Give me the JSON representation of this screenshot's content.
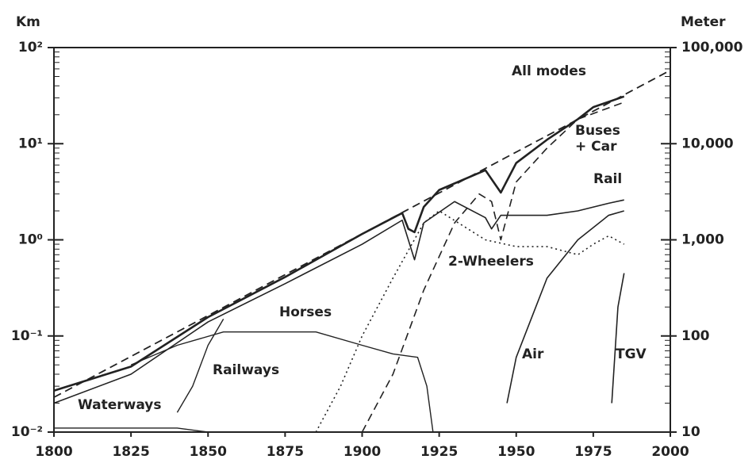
{
  "chart_data": {
    "type": "line",
    "ylabel": "Km",
    "y2label": "Meter",
    "log_y": true,
    "xlim": [
      1800,
      2000
    ],
    "xticks": [
      1800,
      1825,
      1850,
      1875,
      1900,
      1925,
      1950,
      1975,
      2000
    ],
    "ylim": [
      0.01,
      100
    ],
    "yticks": [
      {
        "value": 0.01,
        "label": "10⁻²"
      },
      {
        "value": 0.1,
        "label": "10⁻¹"
      },
      {
        "value": 1,
        "label": "10⁰"
      },
      {
        "value": 10,
        "label": "10¹"
      },
      {
        "value": 100,
        "label": "10²"
      }
    ],
    "y2lim": [
      10,
      100000
    ],
    "y2ticks": [
      10,
      100,
      {
        "value": 1000,
        "label": "1,000"
      },
      {
        "value": 10000,
        "label": "10,000"
      },
      {
        "value": 100000,
        "label": "100,000"
      }
    ],
    "series": [
      {
        "name": "All modes",
        "color": "#222",
        "style": "solid",
        "width": 2.6,
        "x": [
          1800,
          1825,
          1850,
          1875,
          1900,
          1913,
          1915,
          1917,
          1920,
          1925,
          1940,
          1945,
          1950,
          1960,
          1970,
          1975,
          1985
        ],
        "values": [
          0.027,
          0.048,
          0.157,
          0.41,
          1.15,
          1.9,
          1.3,
          1.2,
          2.2,
          3.3,
          5.3,
          3.1,
          6.3,
          11,
          18,
          24,
          31
        ]
      },
      {
        "color": "#222",
        "style": "dashed",
        "width": 1.8,
        "x": [
          1800,
          2000
        ],
        "values": [
          0.023,
          58
        ]
      },
      {
        "name": "Buses + Car",
        "color": "#222",
        "style": "dashed",
        "width": 1.6,
        "x": [
          1900,
          1910,
          1920,
          1930,
          1938,
          1942,
          1945,
          1950,
          1960,
          1970,
          1985
        ],
        "values": [
          0.01,
          0.04,
          0.3,
          1.5,
          3.0,
          2.5,
          1.0,
          4,
          9,
          18,
          27
        ]
      },
      {
        "name": "Rail",
        "color": "#222",
        "style": "solid",
        "width": 1.6,
        "x": [
          1800,
          1825,
          1850,
          1875,
          1900,
          1913,
          1917,
          1920,
          1930,
          1940,
          1942,
          1945,
          1950,
          1960,
          1970,
          1980,
          1985
        ],
        "values": [
          0.02,
          0.04,
          0.14,
          0.35,
          0.9,
          1.6,
          0.62,
          1.5,
          2.5,
          1.7,
          1.3,
          1.8,
          1.8,
          1.8,
          2.0,
          2.4,
          2.6
        ]
      },
      {
        "name": "2-Wheelers",
        "color": "#222",
        "style": "dotted",
        "width": 1.6,
        "x": [
          1885,
          1893,
          1900,
          1910,
          1920,
          1925,
          1940,
          1950,
          1960,
          1970,
          1975,
          1980,
          1985
        ],
        "values": [
          0.01,
          0.03,
          0.1,
          0.4,
          1.5,
          2.0,
          1.0,
          0.85,
          0.85,
          0.7,
          0.9,
          1.1,
          0.9
        ]
      },
      {
        "name": "Horses",
        "color": "#222",
        "style": "solid",
        "width": 1.4,
        "x": [
          1825,
          1840,
          1855,
          1875,
          1885,
          1900,
          1910,
          1918,
          1921,
          1923
        ],
        "values": [
          0.05,
          0.08,
          0.11,
          0.11,
          0.11,
          0.08,
          0.065,
          0.06,
          0.03,
          0.01
        ]
      },
      {
        "name": "Railways",
        "color": "#222",
        "style": "solid",
        "width": 1.4,
        "x": [
          1840,
          1845,
          1850,
          1855
        ],
        "values": [
          0.016,
          0.03,
          0.08,
          0.15
        ]
      },
      {
        "name": "Waterways",
        "color": "#222",
        "style": "solid",
        "width": 1.4,
        "x": [
          1800,
          1840,
          1850
        ],
        "values": [
          0.011,
          0.011,
          0.01
        ]
      },
      {
        "name": "Air",
        "color": "#222",
        "style": "solid",
        "width": 1.6,
        "x": [
          1947,
          1950,
          1960,
          1970,
          1980,
          1985
        ],
        "values": [
          0.02,
          0.06,
          0.4,
          1.0,
          1.8,
          2.0
        ]
      },
      {
        "name": "TGV",
        "color": "#222",
        "style": "solid",
        "width": 1.6,
        "x": [
          1981,
          1983,
          1985
        ],
        "values": [
          0.02,
          0.2,
          0.45
        ]
      }
    ]
  }
}
